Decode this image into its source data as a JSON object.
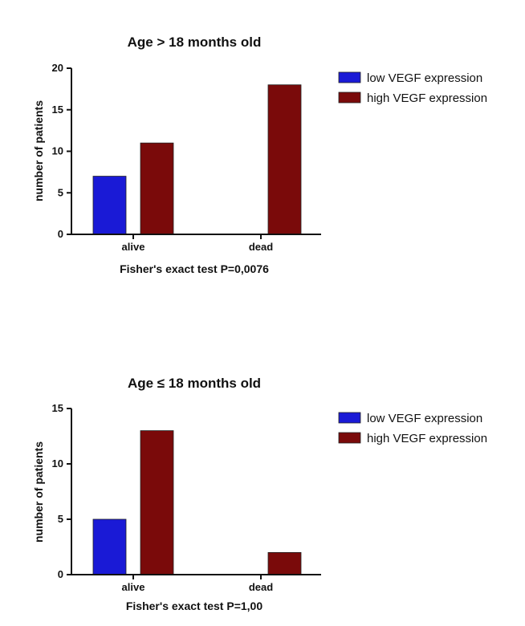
{
  "chart_data": [
    {
      "type": "bar",
      "title": "Age > 18 months old",
      "ylabel": "number of patients",
      "xlabel": "Fisher's exact test  P=0,0076",
      "categories": [
        "alive",
        "dead"
      ],
      "ylim": [
        0,
        20
      ],
      "yticks": [
        "0",
        "5",
        "10",
        "15",
        "20"
      ],
      "yticks_values": [
        0,
        5,
        10,
        15,
        20
      ],
      "series": [
        {
          "name": "low VEGF expression",
          "color": "#1a1ad6",
          "values": [
            7,
            0
          ]
        },
        {
          "name": "high VEGF expression",
          "color": "#7a0a0a",
          "values": [
            11,
            18
          ]
        }
      ],
      "legend": "top-right",
      "grid": false
    },
    {
      "type": "bar",
      "title": "Age ≤ 18 months old",
      "ylabel": "number of patients",
      "xlabel": "Fisher's exact test  P=1,00",
      "categories": [
        "alive",
        "dead"
      ],
      "ylim": [
        0,
        15
      ],
      "yticks": [
        "0",
        "5",
        "10",
        "15"
      ],
      "yticks_values": [
        0,
        5,
        10,
        15
      ],
      "series": [
        {
          "name": "low VEGF expression",
          "color": "#1a1ad6",
          "values": [
            5,
            0
          ]
        },
        {
          "name": "high VEGF expression",
          "color": "#7a0a0a",
          "values": [
            13,
            2
          ]
        }
      ],
      "legend": "top-right",
      "grid": false
    }
  ]
}
